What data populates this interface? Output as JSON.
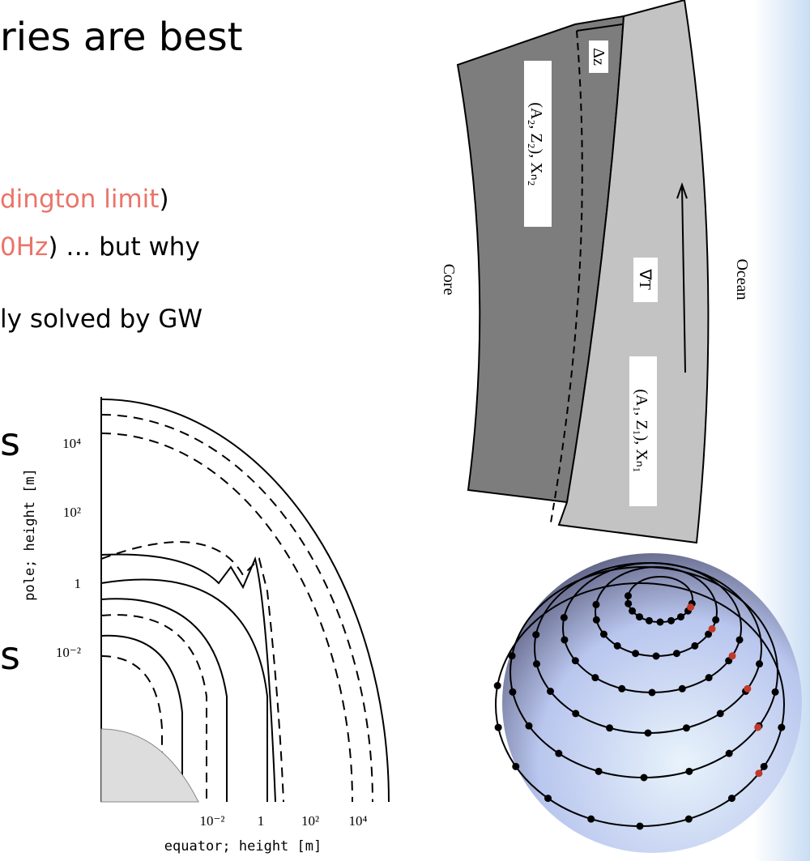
{
  "slide": {
    "title_fragment": "ries are best",
    "bullets": [
      {
        "highlight": "dington limit",
        "rest": ")"
      },
      {
        "highlight": "0Hz",
        "rest": ") … but why"
      },
      {
        "rest": "ly solved by GW"
      }
    ],
    "fragments": [
      "s",
      "s"
    ]
  },
  "crust_figure": {
    "core": "Core",
    "ocean": "Ocean",
    "gradient": "∇T",
    "layer_top": "(A₂, Z₂), Xₙ₂",
    "layer_bottom": "(A₁, Z₁), Xₙ₁",
    "thickness": "Δz"
  },
  "contour_figure": {
    "y_label": "pole; height [m]",
    "x_label": "equator; height [m]",
    "y_tick_labels": [
      "10⁴",
      "10²",
      "1",
      "10⁻²"
    ],
    "x_tick_labels": [
      "10⁻²",
      "1",
      "10²",
      "10⁴"
    ]
  }
}
